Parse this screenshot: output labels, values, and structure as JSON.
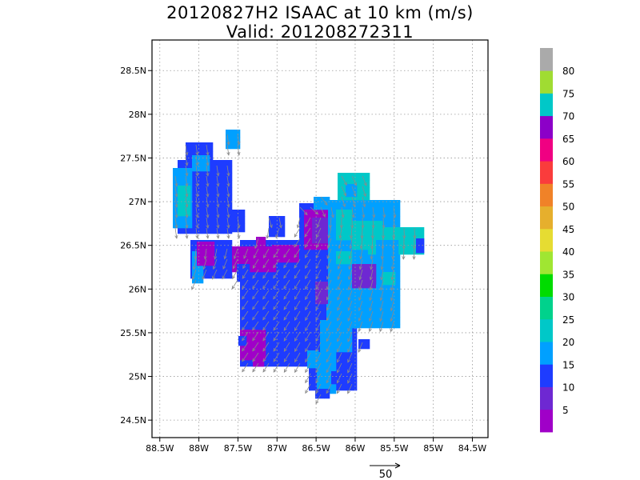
{
  "title": {
    "line1": "20120827H2 ISAAC at 10 km (m/s)",
    "line2": "Valid: 201208272311"
  },
  "map": {
    "lon_ticks": [
      "88.5W",
      "88W",
      "87.5W",
      "87W",
      "86.5W",
      "86W",
      "85.5W",
      "85W",
      "84.5W"
    ],
    "lat_ticks": [
      "24.5N",
      "25N",
      "25.5N",
      "26N",
      "26.5N",
      "27N",
      "27.5N",
      "28N",
      "28.5N"
    ],
    "lon_range": [
      -88.6,
      -84.3
    ],
    "lat_range": [
      24.3,
      28.85
    ],
    "grid": true
  },
  "colorbar": {
    "labels": [
      "5",
      "10",
      "15",
      "20",
      "25",
      "30",
      "35",
      "40",
      "45",
      "50",
      "55",
      "60",
      "65",
      "70",
      "75",
      "80"
    ],
    "colors": [
      "#a000c8",
      "#6e28d2",
      "#1e3cff",
      "#00a0ff",
      "#00c8c8",
      "#00d28c",
      "#00dc00",
      "#a0e632",
      "#e6dc32",
      "#e6af2d",
      "#f08228",
      "#fa3c3c",
      "#f00082",
      "#8c00c8",
      "#00c8c8",
      "#a0dc32",
      "#aaaaaa"
    ]
  },
  "reference_vector": {
    "label": "50"
  }
}
